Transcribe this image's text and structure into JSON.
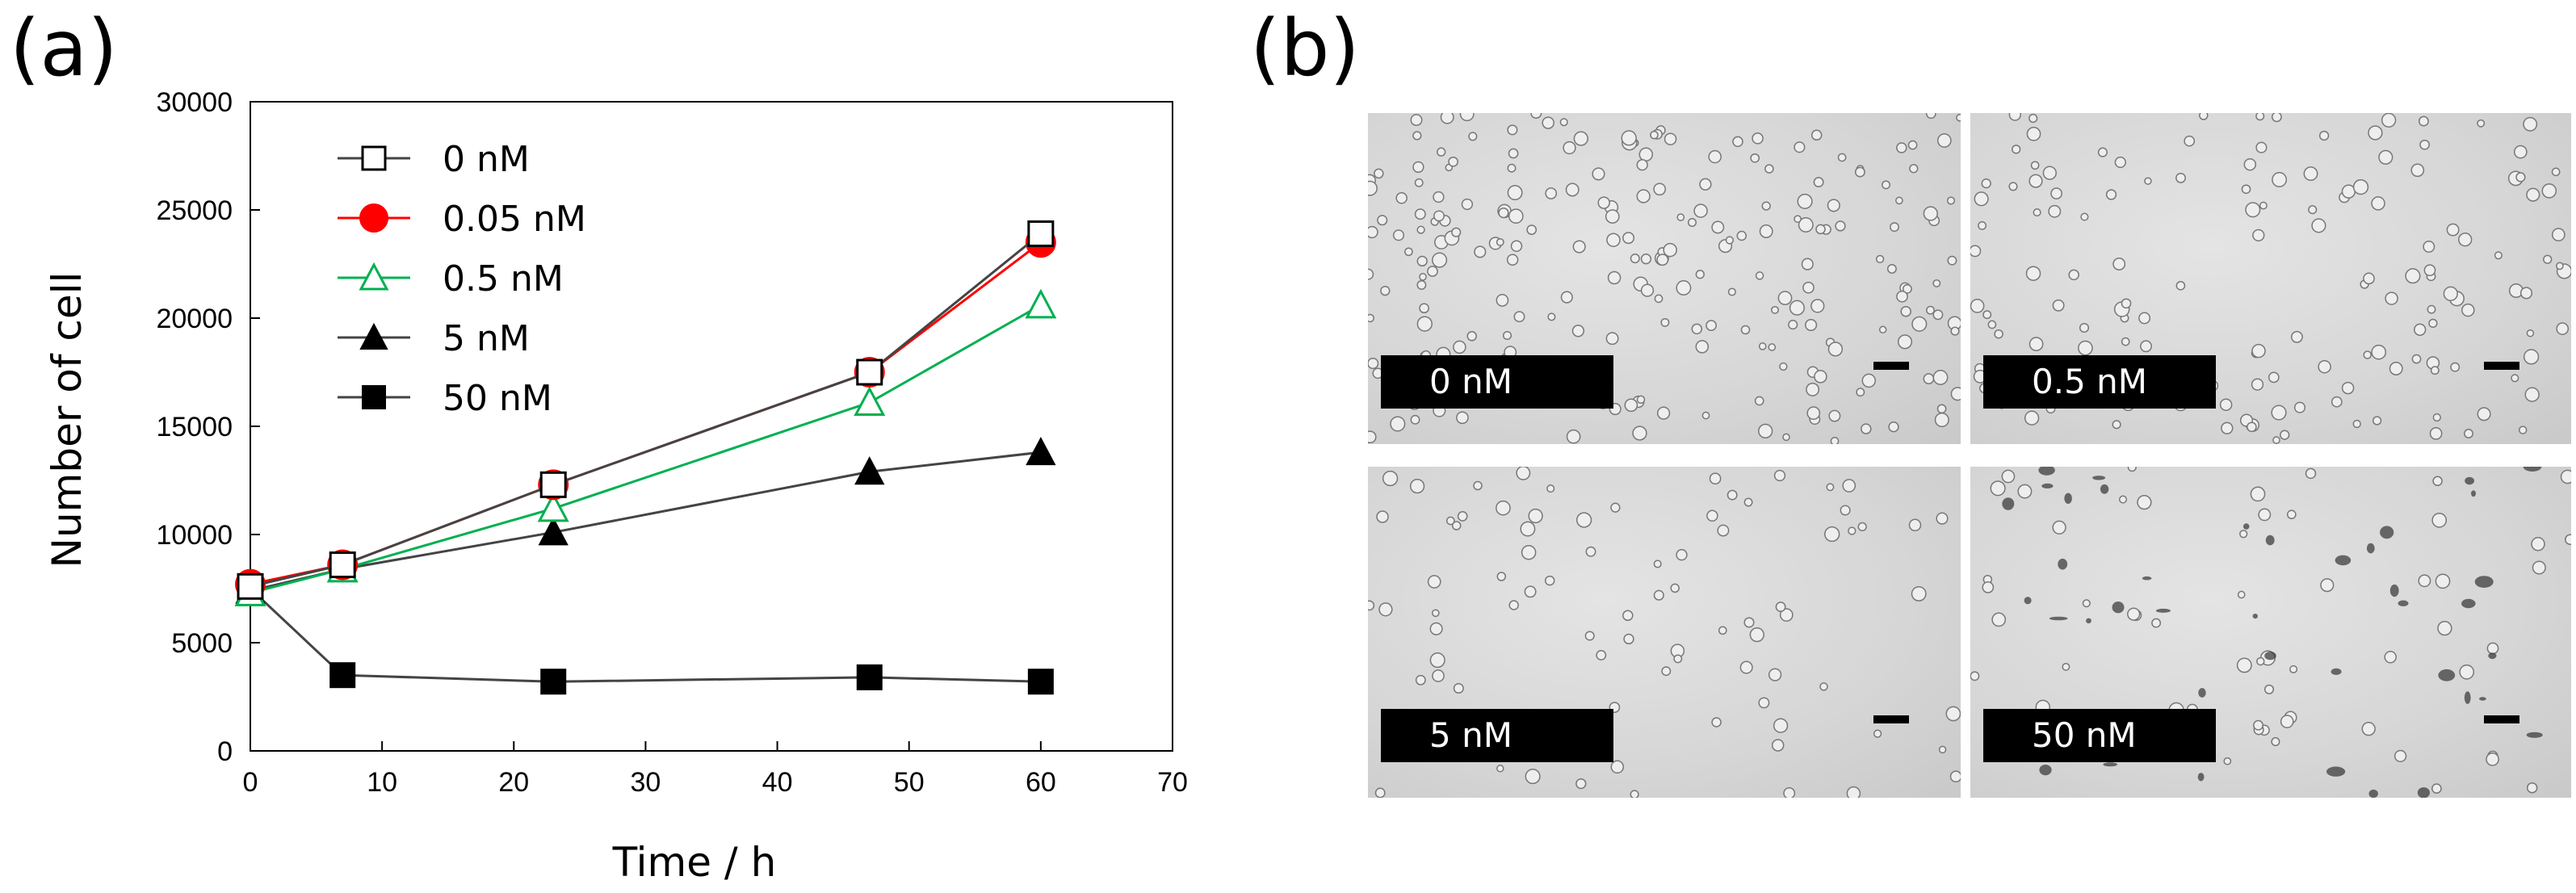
{
  "panels": {
    "a_label": "(a)",
    "b_label": "(b)"
  },
  "chart_data": {
    "type": "line",
    "title": "",
    "xlabel": "Time / h",
    "ylabel": "Number of cell",
    "xlim": [
      0,
      70
    ],
    "ylim": [
      0,
      30000
    ],
    "xticks": [
      0,
      10,
      20,
      30,
      40,
      50,
      60,
      70
    ],
    "yticks": [
      0,
      5000,
      10000,
      15000,
      20000,
      25000,
      30000
    ],
    "grid": false,
    "legend_position": "top-left",
    "x": [
      0,
      7,
      23,
      47,
      60
    ],
    "series": [
      {
        "name": "0 nM",
        "marker": "square-open",
        "color": "#000000",
        "line_color": "#444444",
        "values": [
          7600,
          8600,
          12300,
          17500,
          23900
        ]
      },
      {
        "name": "0.05 nM",
        "marker": "circle-filled",
        "color": "#ff0000",
        "line_color": "#ff0000",
        "values": [
          7700,
          8600,
          12300,
          17500,
          23500
        ]
      },
      {
        "name": "0.5 nM",
        "marker": "triangle-open",
        "color": "#00b050",
        "line_color": "#00b050",
        "values": [
          7300,
          8400,
          11200,
          16100,
          20600
        ]
      },
      {
        "name": "5 nM",
        "marker": "triangle-filled",
        "color": "#000000",
        "line_color": "#444444",
        "values": [
          7400,
          8400,
          10100,
          12900,
          13800
        ]
      },
      {
        "name": "50 nM",
        "marker": "square-filled",
        "color": "#000000",
        "line_color": "#444444",
        "values": [
          7500,
          3500,
          3200,
          3400,
          3200
        ]
      }
    ]
  },
  "micrographs": [
    {
      "label": "0 nM"
    },
    {
      "label": "0.5 nM"
    },
    {
      "label": "5 nM"
    },
    {
      "label": "50 nM"
    }
  ]
}
